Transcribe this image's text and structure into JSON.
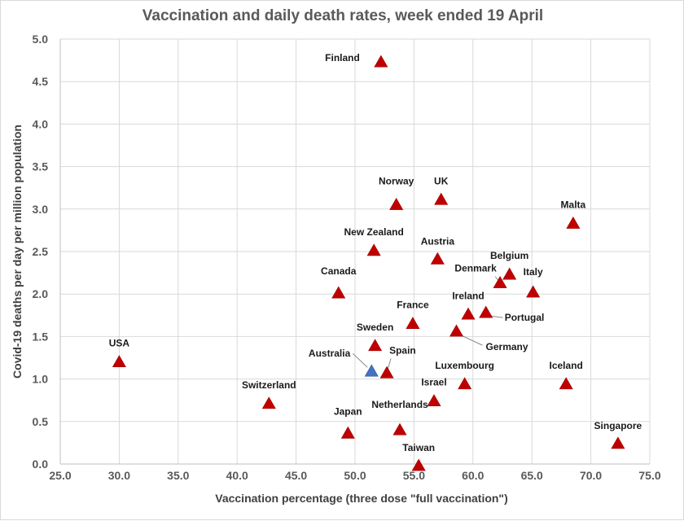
{
  "chart_data": {
    "type": "scatter",
    "title": "Vaccination and daily death rates, week ended 19 April",
    "xlabel": "Vaccination percentage (three dose \"full vaccination\")",
    "ylabel": "Covid-19 deaths per day per million population",
    "xlim": [
      25.0,
      75.0
    ],
    "ylim": [
      0.0,
      5.0
    ],
    "x_ticks": [
      "25.0",
      "30.0",
      "35.0",
      "40.0",
      "45.0",
      "50.0",
      "55.0",
      "60.0",
      "65.0",
      "70.0",
      "75.0"
    ],
    "y_ticks": [
      "0.0",
      "0.5",
      "1.0",
      "1.5",
      "2.0",
      "2.5",
      "3.0",
      "3.5",
      "4.0",
      "4.5",
      "5.0"
    ],
    "grid": "horizontal and vertical",
    "colors": {
      "default_marker": "#c00000",
      "highlight_marker": "#4472c4"
    },
    "points": [
      {
        "label": "Finland",
        "x": 52.2,
        "y": 4.73,
        "highlight": false
      },
      {
        "label": "UK",
        "x": 57.3,
        "y": 3.11,
        "highlight": false
      },
      {
        "label": "Norway",
        "x": 53.5,
        "y": 3.05,
        "highlight": false
      },
      {
        "label": "Malta",
        "x": 68.5,
        "y": 2.83,
        "highlight": false
      },
      {
        "label": "New Zealand",
        "x": 51.6,
        "y": 2.51,
        "highlight": false
      },
      {
        "label": "Austria",
        "x": 57.0,
        "y": 2.41,
        "highlight": false
      },
      {
        "label": "Belgium",
        "x": 63.1,
        "y": 2.23,
        "highlight": false
      },
      {
        "label": "Denmark",
        "x": 62.3,
        "y": 2.13,
        "highlight": false
      },
      {
        "label": "Italy",
        "x": 65.1,
        "y": 2.02,
        "highlight": false
      },
      {
        "label": "Canada",
        "x": 48.6,
        "y": 2.01,
        "highlight": false
      },
      {
        "label": "Ireland",
        "x": 59.6,
        "y": 1.76,
        "highlight": false
      },
      {
        "label": "Portugal",
        "x": 61.1,
        "y": 1.78,
        "highlight": false
      },
      {
        "label": "France",
        "x": 54.9,
        "y": 1.65,
        "highlight": false
      },
      {
        "label": "Germany",
        "x": 58.6,
        "y": 1.56,
        "highlight": false
      },
      {
        "label": "Sweden",
        "x": 51.7,
        "y": 1.39,
        "highlight": false
      },
      {
        "label": "USA",
        "x": 30.0,
        "y": 1.2,
        "highlight": false
      },
      {
        "label": "Australia",
        "x": 51.4,
        "y": 1.09,
        "highlight": true
      },
      {
        "label": "Spain",
        "x": 52.7,
        "y": 1.07,
        "highlight": false
      },
      {
        "label": "Luxembourg",
        "x": 59.3,
        "y": 0.94,
        "highlight": false
      },
      {
        "label": "Iceland",
        "x": 67.9,
        "y": 0.94,
        "highlight": false
      },
      {
        "label": "Israel",
        "x": 56.7,
        "y": 0.74,
        "highlight": false
      },
      {
        "label": "Switzerland",
        "x": 42.7,
        "y": 0.71,
        "highlight": false
      },
      {
        "label": "Netherlands",
        "x": 53.8,
        "y": 0.4,
        "highlight": false
      },
      {
        "label": "Japan",
        "x": 49.4,
        "y": 0.36,
        "highlight": false
      },
      {
        "label": "Singapore",
        "x": 72.3,
        "y": 0.24,
        "highlight": false
      },
      {
        "label": "Taiwan",
        "x": 55.4,
        "y": -0.02,
        "highlight": false
      }
    ]
  }
}
